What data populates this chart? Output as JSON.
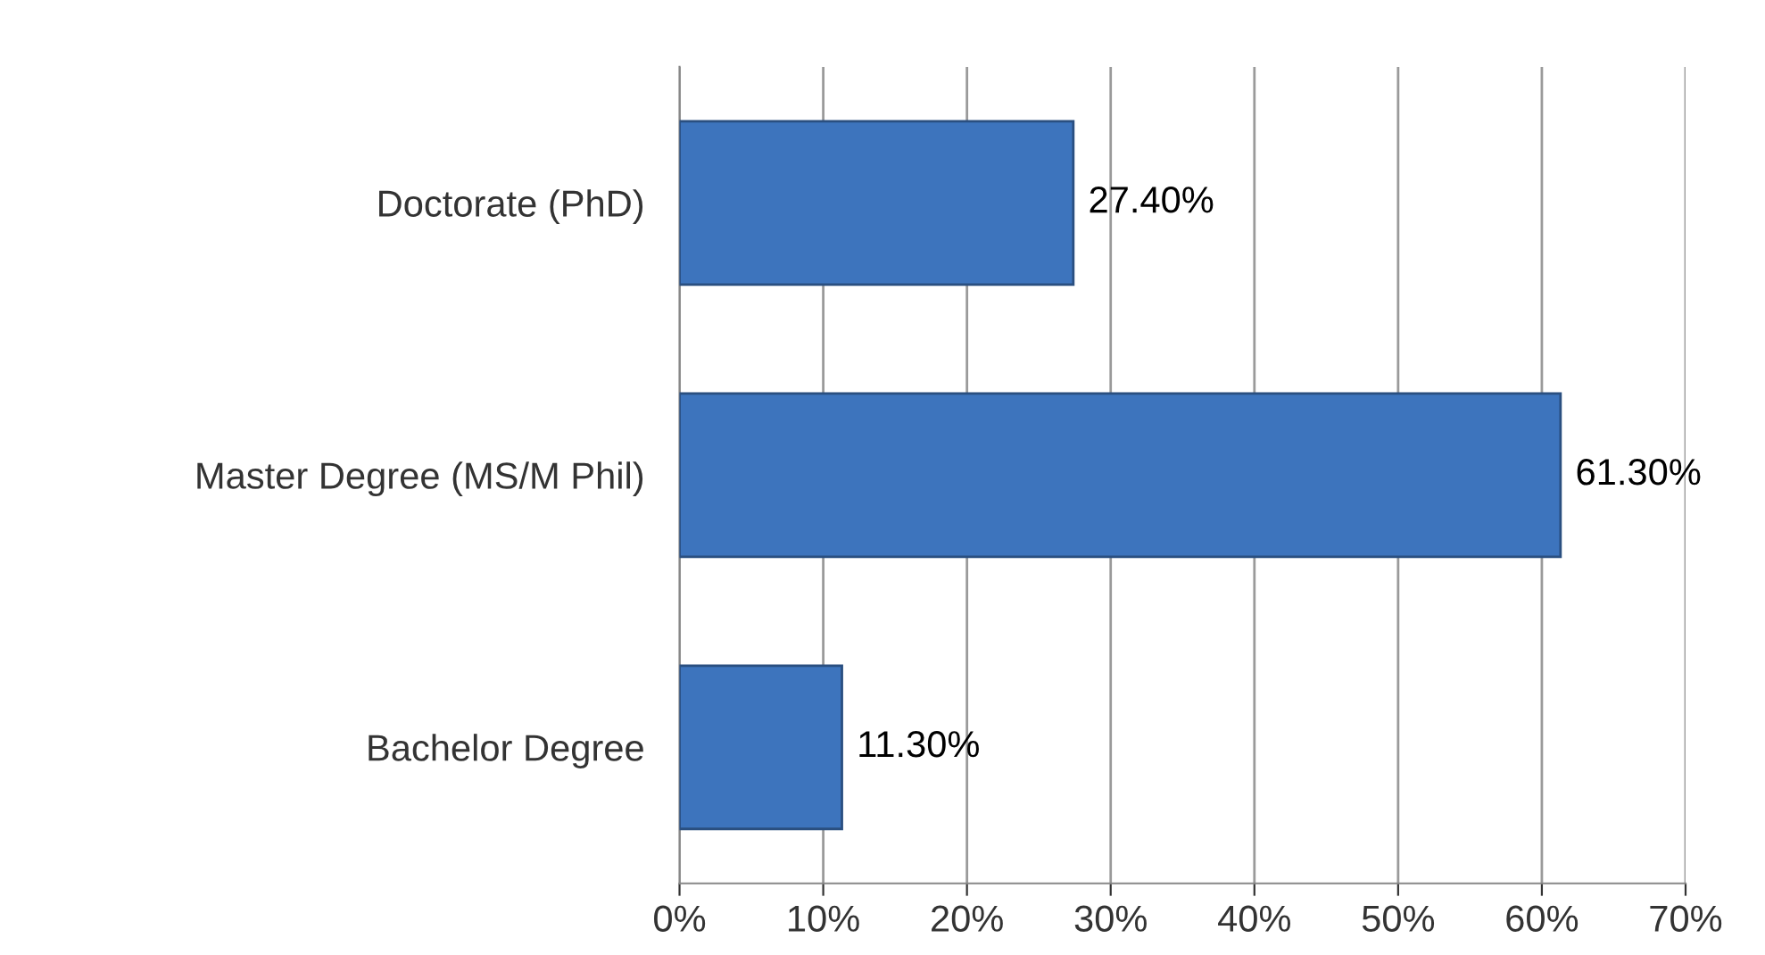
{
  "chart_data": {
    "type": "bar",
    "orientation": "horizontal",
    "categories": [
      "Doctorate (PhD)",
      "Master Degree (MS/M Phil)",
      "Bachelor Degree"
    ],
    "values": [
      27.4,
      61.3,
      11.3
    ],
    "value_labels": [
      "27.40%",
      "61.30%",
      "11.30%"
    ],
    "color": "#3d74bd",
    "xlim": [
      0,
      70
    ],
    "xticks": [
      {
        "value": 0,
        "label": "0%"
      },
      {
        "value": 10,
        "label": "10%"
      },
      {
        "value": 20,
        "label": "20%"
      },
      {
        "value": 30,
        "label": "30%"
      },
      {
        "value": 40,
        "label": "40%"
      },
      {
        "value": 50,
        "label": "50%"
      },
      {
        "value": 60,
        "label": "60%"
      },
      {
        "value": 70,
        "label": "70%"
      }
    ],
    "grid": "x",
    "legend": false
  }
}
